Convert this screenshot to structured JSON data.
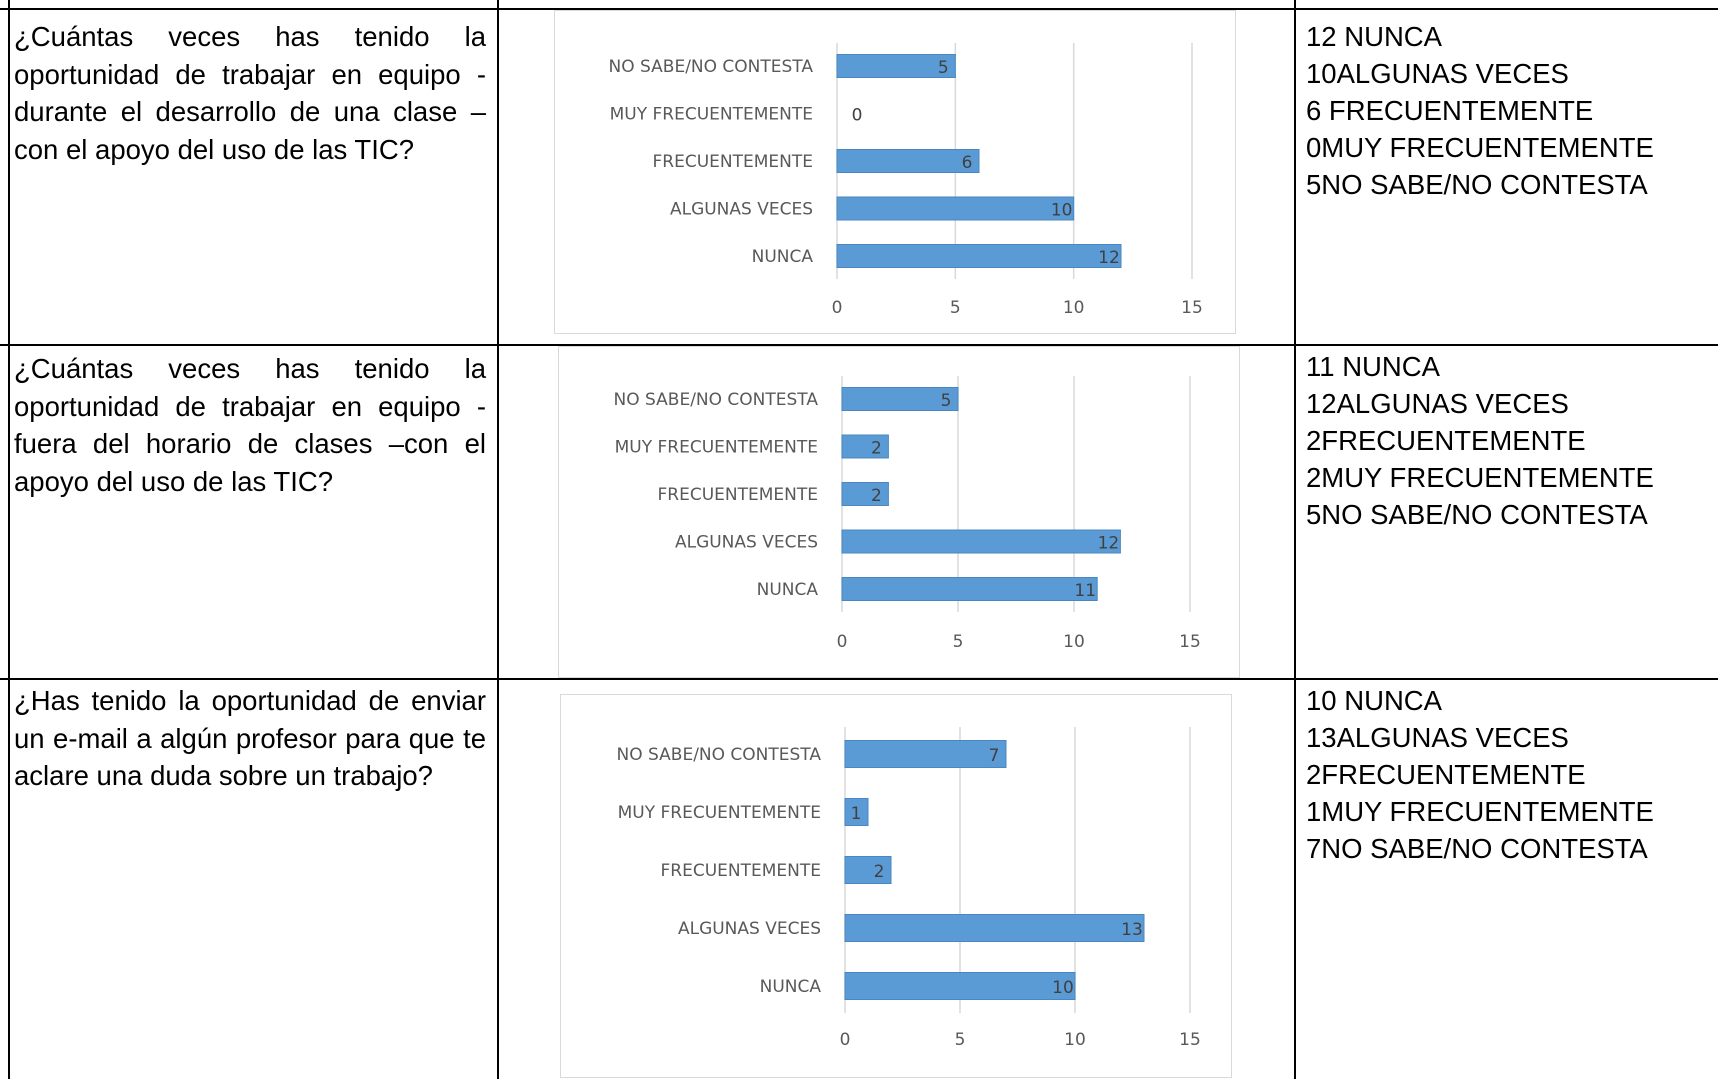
{
  "rows": [
    {
      "question": "¿Cuántas veces has tenido la oportunidad de trabajar en equipo - durante el desarrollo de una clase – con el apoyo del uso de las TIC?",
      "answers": [
        "12 NUNCA",
        "10ALGUNAS VECES",
        "6 FRECUENTEMENTE",
        "0MUY FRECUENTEMENTE",
        "5NO SABE/NO CONTESTA"
      ]
    },
    {
      "question": "¿Cuántas veces has tenido la oportunidad de trabajar en equipo - fuera del horario de clases –con el apoyo del uso de las TIC?",
      "answers": [
        "11 NUNCA",
        "12ALGUNAS VECES",
        "2FRECUENTEMENTE",
        "2MUY FRECUENTEMENTE",
        "5NO SABE/NO CONTESTA"
      ]
    },
    {
      "question": "¿Has tenido la oportunidad de enviar un e-mail a algún profesor para que te aclare una duda sobre un trabajo?",
      "answers": [
        "10 NUNCA",
        "13ALGUNAS VECES",
        "2FRECUENTEMENTE",
        "1MUY FRECUENTEMENTE",
        "7NO SABE/NO CONTESTA"
      ]
    }
  ],
  "chart_data": [
    {
      "type": "bar",
      "orientation": "horizontal",
      "categories": [
        "NO SABE/NO CONTESTA",
        "MUY FRECUENTEMENTE",
        "FRECUENTEMENTE",
        "ALGUNAS VECES",
        "NUNCA"
      ],
      "values": [
        5,
        0,
        6,
        10,
        12
      ],
      "xticks": [
        0,
        5,
        10,
        15
      ],
      "xlim": [
        0,
        15
      ],
      "grid": true,
      "bar_color": "#5b9bd5"
    },
    {
      "type": "bar",
      "orientation": "horizontal",
      "categories": [
        "NO SABE/NO CONTESTA",
        "MUY FRECUENTEMENTE",
        "FRECUENTEMENTE",
        "ALGUNAS VECES",
        "NUNCA"
      ],
      "values": [
        5,
        2,
        2,
        12,
        11
      ],
      "xticks": [
        0,
        5,
        10,
        15
      ],
      "xlim": [
        0,
        15
      ],
      "grid": true,
      "bar_color": "#5b9bd5"
    },
    {
      "type": "bar",
      "orientation": "horizontal",
      "categories": [
        "NO SABE/NO CONTESTA",
        "MUY FRECUENTEMENTE",
        "FRECUENTEMENTE",
        "ALGUNAS VECES",
        "NUNCA"
      ],
      "values": [
        7,
        1,
        2,
        13,
        10
      ],
      "xticks": [
        0,
        5,
        10,
        15
      ],
      "xlim": [
        0,
        15
      ],
      "grid": true,
      "bar_color": "#5b9bd5"
    }
  ]
}
